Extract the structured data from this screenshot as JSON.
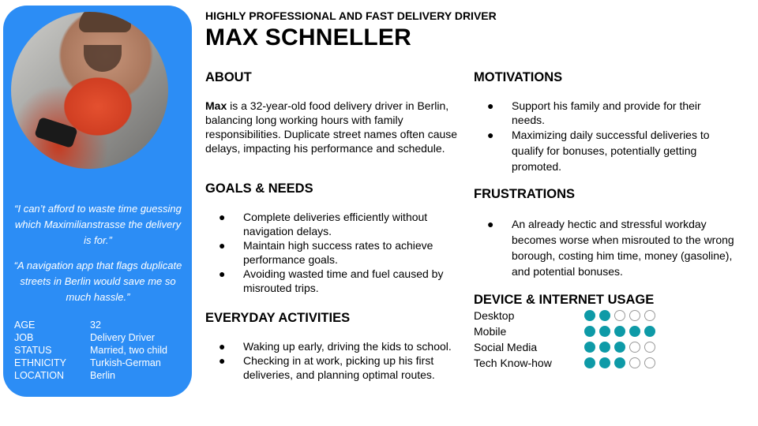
{
  "profile": {
    "subtitle": "HIGHLY PROFESSIONAL AND FAST DELIVERY DRIVER",
    "name": "MAX SCHNELLER",
    "quotes": [
      "“I can’t afford to waste time guessing which Maximilianstrasse the delivery is for.”",
      "“A navigation app that flags duplicate streets in Berlin would save me so much hassle.”"
    ],
    "facts": [
      {
        "label": "AGE",
        "value": "32"
      },
      {
        "label": "JOB",
        "value": "Delivery Driver"
      },
      {
        "label": "STATUS",
        "value": "Married, two child"
      },
      {
        "label": "ETHNICITY",
        "value": "Turkish-German"
      },
      {
        "label": "LOCATION",
        "value": "Berlin"
      }
    ]
  },
  "about": {
    "heading": "ABOUT",
    "lead": "Max",
    "text": " is a 32-year-old food delivery driver in Berlin, balancing long working hours with family responsibilities. Duplicate street names often cause delays, impacting his performance and schedule."
  },
  "goals": {
    "heading": "GOALS & NEEDS",
    "items": [
      "Complete deliveries efficiently without navigation delays.",
      "Maintain high success rates to achieve performance goals.",
      "Avoiding wasted time and fuel caused by misrouted trips."
    ]
  },
  "activities": {
    "heading": "EVERYDAY ACTIVITIES",
    "items": [
      "Waking up early, driving the kids to school.",
      "Checking in at work, picking up his first deliveries, and planning optimal routes."
    ]
  },
  "motivations": {
    "heading": "MOTIVATIONS",
    "items": [
      "Support his family and provide for their needs.",
      "Maximizing daily successful deliveries to qualify for bonuses, potentially getting promoted."
    ]
  },
  "frustrations": {
    "heading": "FRUSTRATIONS",
    "items": [
      "An already hectic and stressful workday becomes worse when misrouted to the wrong borough, costing him time, money (gasoline), and potential bonuses."
    ]
  },
  "usage": {
    "heading": "DEVICE & INTERNET USAGE",
    "scale_max": 5,
    "rows": [
      {
        "label": "Desktop",
        "level": 2
      },
      {
        "label": "Mobile",
        "level": 5
      },
      {
        "label": "Social Media",
        "level": 3
      },
      {
        "label": "Tech Know-how",
        "level": 3
      }
    ],
    "colors": {
      "filled": "#0e9aa7",
      "empty": "#ffffff"
    }
  },
  "bullet": "●",
  "colors": {
    "card": "#2c8df5"
  }
}
